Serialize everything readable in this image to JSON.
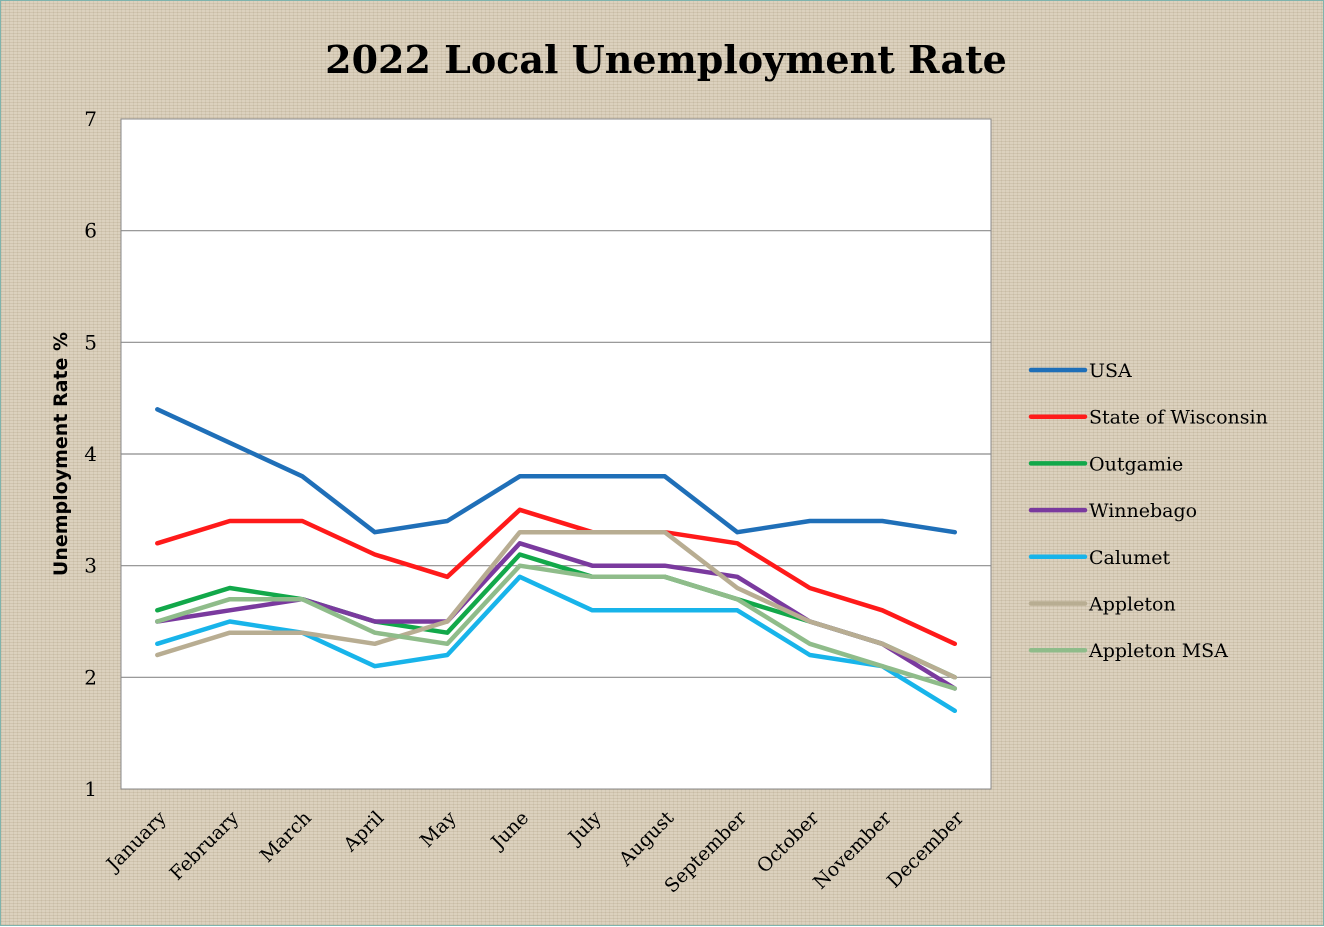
{
  "chart_data": {
    "type": "line",
    "title": "2022 Local Unemployment Rate",
    "xlabel": "",
    "ylabel": "Unemployment Rate %",
    "ylim": [
      1,
      7
    ],
    "yticks": [
      1,
      2,
      3,
      4,
      5,
      6,
      7
    ],
    "grid": true,
    "legend_position": "right",
    "categories": [
      "January",
      "February",
      "March",
      "April",
      "May",
      "June",
      "July",
      "August",
      "September",
      "October",
      "November",
      "December"
    ],
    "series": [
      {
        "name": "USA",
        "color": "#1f6fb8",
        "values": [
          4.4,
          4.1,
          3.8,
          3.3,
          3.4,
          3.8,
          3.8,
          3.8,
          3.3,
          3.4,
          3.4,
          3.3
        ]
      },
      {
        "name": "State of Wisconsin",
        "color": "#ff1a1a",
        "values": [
          3.2,
          3.4,
          3.4,
          3.1,
          2.9,
          3.5,
          3.3,
          3.3,
          3.2,
          2.8,
          2.6,
          2.3
        ]
      },
      {
        "name": "Outgamie",
        "color": "#12a84a",
        "values": [
          2.6,
          2.8,
          2.7,
          2.5,
          2.4,
          3.1,
          2.9,
          2.9,
          2.7,
          2.5,
          2.3,
          2.0
        ]
      },
      {
        "name": "Winnebago",
        "color": "#7a3a9e",
        "values": [
          2.5,
          2.6,
          2.7,
          2.5,
          2.5,
          3.2,
          3.0,
          3.0,
          2.9,
          2.5,
          2.3,
          1.9
        ]
      },
      {
        "name": "Calumet",
        "color": "#18b4ea",
        "values": [
          2.3,
          2.5,
          2.4,
          2.1,
          2.2,
          2.9,
          2.6,
          2.6,
          2.6,
          2.2,
          2.1,
          1.7
        ]
      },
      {
        "name": "Appleton",
        "color": "#b8ad92",
        "values": [
          2.2,
          2.4,
          2.4,
          2.3,
          2.5,
          3.3,
          3.3,
          3.3,
          2.8,
          2.5,
          2.3,
          2.0
        ]
      },
      {
        "name": "Appleton MSA",
        "color": "#8fbc8a",
        "values": [
          2.5,
          2.7,
          2.7,
          2.4,
          2.3,
          3.0,
          2.9,
          2.9,
          2.7,
          2.3,
          2.1,
          1.9
        ]
      }
    ]
  }
}
